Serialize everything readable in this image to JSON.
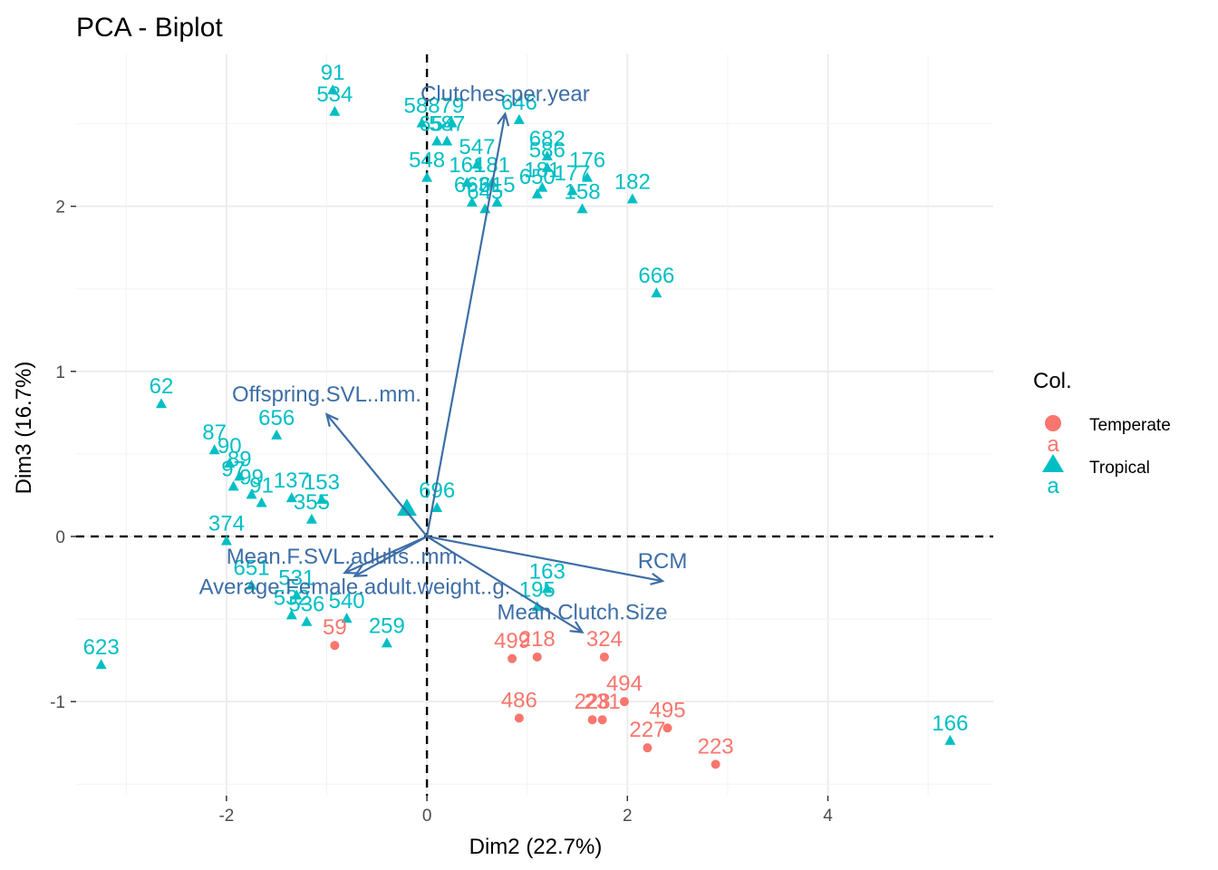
{
  "chart_data": {
    "type": "scatter",
    "title": "PCA - Biplot",
    "xlabel": "Dim2 (22.7%)",
    "ylabel": "Dim3 (16.7%)",
    "xlim": [
      -3.5,
      5.65
    ],
    "ylim": [
      -1.57,
      2.92
    ],
    "x_ticks": [
      -2,
      0,
      2,
      4
    ],
    "y_ticks": [
      -1,
      0,
      1,
      2
    ],
    "grid": true,
    "legend": {
      "title": "Col.",
      "position": "right",
      "entries": [
        {
          "label": "Temperate",
          "color": "#f8766d",
          "shape": "circle",
          "key_text": "a"
        },
        {
          "label": "Tropical",
          "color": "#00bfc4",
          "shape": "triangle",
          "key_text": "a"
        }
      ]
    },
    "variables": [
      {
        "name": "Clutches.per.year",
        "x": 0.78,
        "y": 2.56
      },
      {
        "name": "Offspring.SVL..mm.",
        "x": -1.0,
        "y": 0.74
      },
      {
        "name": "Mean.F.SVL.adults..mm.",
        "x": -0.82,
        "y": -0.22
      },
      {
        "name": "Average.Female.adult.weight..g.",
        "x": -0.72,
        "y": -0.24
      },
      {
        "name": "RCM",
        "x": 2.35,
        "y": -0.27
      },
      {
        "name": "Mean.Clutch.Size",
        "x": 1.55,
        "y": -0.58
      }
    ],
    "series": [
      {
        "name": "Tropical",
        "points": [
          {
            "label": "91",
            "x": -0.94,
            "y": 2.7
          },
          {
            "label": "534",
            "x": -0.92,
            "y": 2.57
          },
          {
            "label": "588",
            "x": -0.05,
            "y": 2.5
          },
          {
            "label": "79",
            "x": 0.25,
            "y": 2.5
          },
          {
            "label": "646",
            "x": 0.92,
            "y": 2.52
          },
          {
            "label": "654",
            "x": 0.1,
            "y": 2.39
          },
          {
            "label": "587",
            "x": 0.2,
            "y": 2.39
          },
          {
            "label": "682",
            "x": 1.2,
            "y": 2.3
          },
          {
            "label": "547",
            "x": 0.5,
            "y": 2.25
          },
          {
            "label": "586",
            "x": 1.2,
            "y": 2.23
          },
          {
            "label": "548",
            "x": 0.0,
            "y": 2.17
          },
          {
            "label": "161",
            "x": 0.4,
            "y": 2.14
          },
          {
            "label": "181",
            "x": 0.65,
            "y": 2.14
          },
          {
            "label": "176",
            "x": 1.6,
            "y": 2.17
          },
          {
            "label": "181",
            "x": 1.15,
            "y": 2.11
          },
          {
            "label": "182",
            "x": 2.05,
            "y": 2.04
          },
          {
            "label": "663",
            "x": 0.45,
            "y": 2.02
          },
          {
            "label": "650",
            "x": 1.1,
            "y": 2.07
          },
          {
            "label": "177",
            "x": 1.45,
            "y": 2.09
          },
          {
            "label": "645",
            "x": 0.58,
            "y": 1.98
          },
          {
            "label": "615",
            "x": 0.7,
            "y": 2.02
          },
          {
            "label": "158",
            "x": 1.55,
            "y": 1.98
          },
          {
            "label": "666",
            "x": 2.29,
            "y": 1.47
          },
          {
            "label": "62",
            "x": -2.65,
            "y": 0.8
          },
          {
            "label": "656",
            "x": -1.5,
            "y": 0.61
          },
          {
            "label": "87",
            "x": -2.12,
            "y": 0.52
          },
          {
            "label": "90",
            "x": -1.97,
            "y": 0.44
          },
          {
            "label": "89",
            "x": -1.87,
            "y": 0.36
          },
          {
            "label": "97",
            "x": -1.93,
            "y": 0.3
          },
          {
            "label": "99",
            "x": -1.75,
            "y": 0.25
          },
          {
            "label": "91",
            "x": -1.65,
            "y": 0.2
          },
          {
            "label": "137",
            "x": -1.35,
            "y": 0.23
          },
          {
            "label": "153",
            "x": -1.05,
            "y": 0.22
          },
          {
            "label": "696",
            "x": 0.1,
            "y": 0.17
          },
          {
            "label": "355",
            "x": -1.15,
            "y": 0.1
          },
          {
            "label": "374",
            "x": -2.0,
            "y": -0.03
          },
          {
            "label": "651",
            "x": -1.75,
            "y": -0.3
          },
          {
            "label": "531",
            "x": -1.3,
            "y": -0.36
          },
          {
            "label": "532",
            "x": -1.35,
            "y": -0.48
          },
          {
            "label": "536",
            "x": -1.2,
            "y": -0.52
          },
          {
            "label": "540",
            "x": -0.8,
            "y": -0.5
          },
          {
            "label": "259",
            "x": -0.4,
            "y": -0.65
          },
          {
            "label": "163",
            "x": 1.2,
            "y": -0.32
          },
          {
            "label": "195",
            "x": 1.1,
            "y": -0.43
          },
          {
            "label": "623",
            "x": -3.25,
            "y": -0.78
          },
          {
            "label": "166",
            "x": 5.22,
            "y": -1.24
          }
        ]
      },
      {
        "name": "Temperate",
        "points": [
          {
            "label": "59",
            "x": -0.92,
            "y": -0.66
          },
          {
            "label": "324",
            "x": 1.77,
            "y": -0.73
          },
          {
            "label": "499",
            "x": 0.85,
            "y": -0.74
          },
          {
            "label": "218",
            "x": 1.1,
            "y": -0.73
          },
          {
            "label": "494",
            "x": 1.97,
            "y": -1.0
          },
          {
            "label": "486",
            "x": 0.92,
            "y": -1.1
          },
          {
            "label": "228",
            "x": 1.65,
            "y": -1.11
          },
          {
            "label": "231",
            "x": 1.75,
            "y": -1.11
          },
          {
            "label": "495",
            "x": 2.4,
            "y": -1.16
          },
          {
            "label": "227",
            "x": 2.2,
            "y": -1.28
          },
          {
            "label": "223",
            "x": 2.88,
            "y": -1.38
          }
        ]
      }
    ]
  }
}
